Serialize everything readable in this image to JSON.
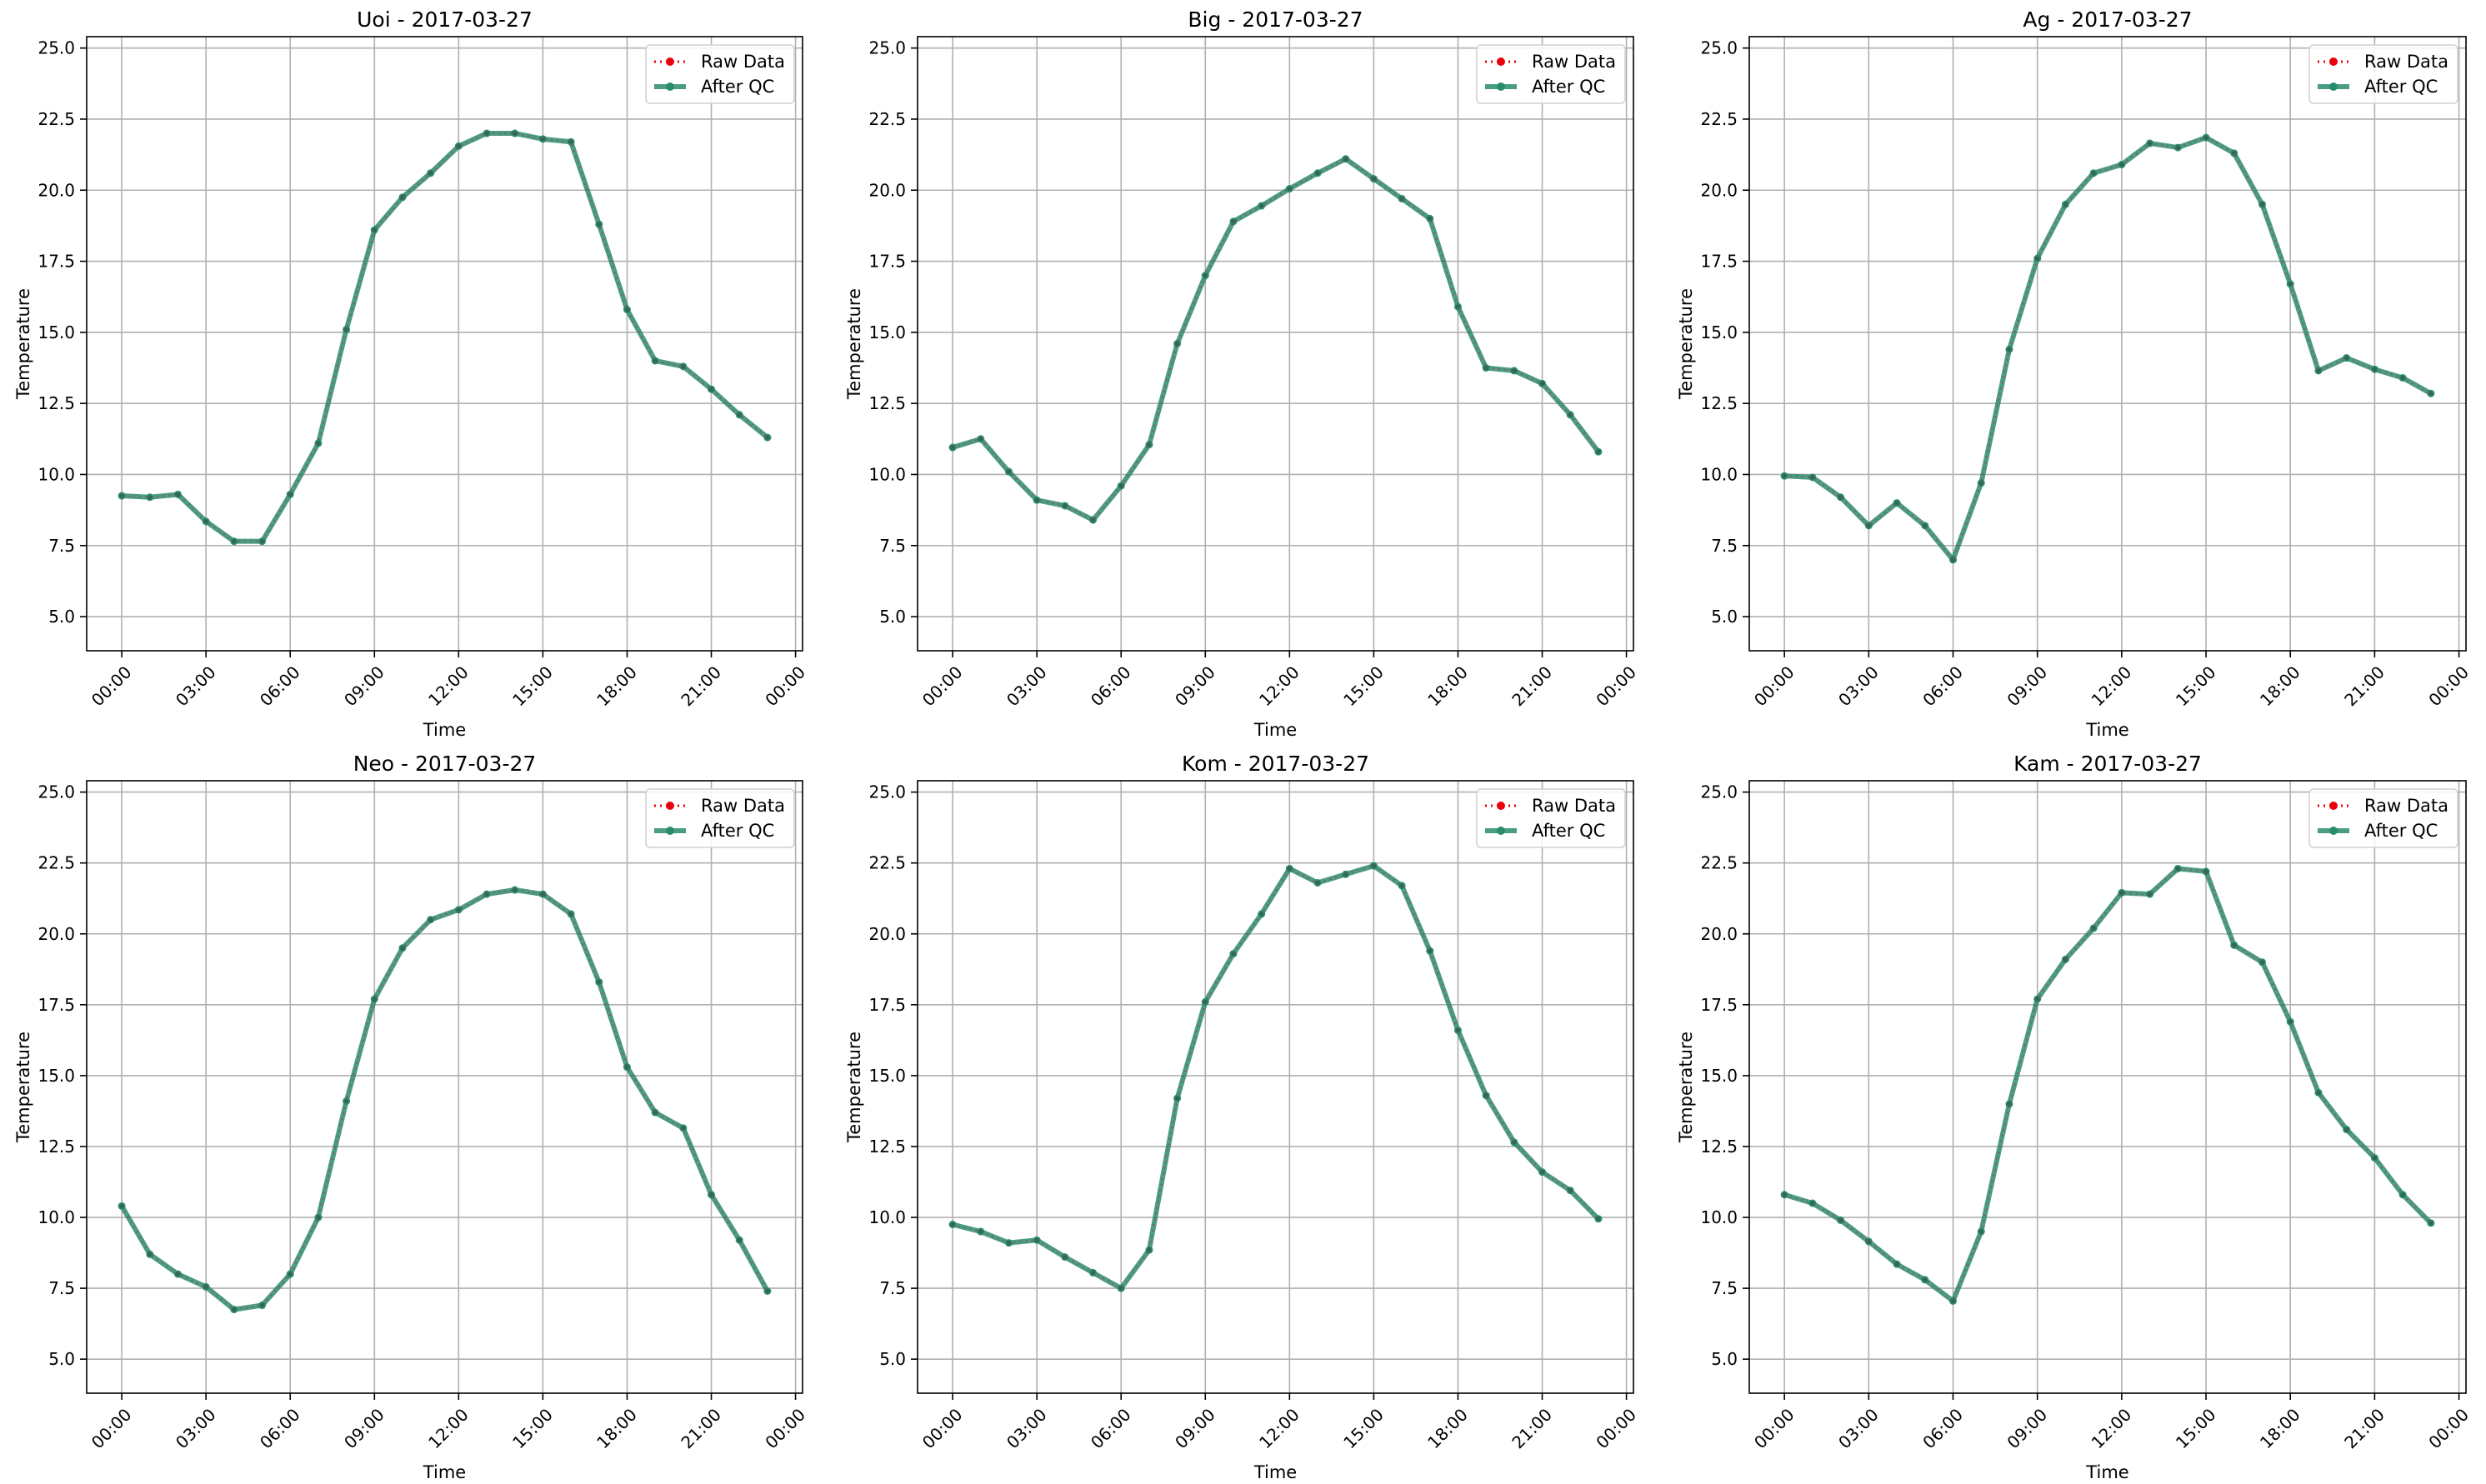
{
  "figure": {
    "background": "#ffffff"
  },
  "style": {
    "raw_color": "#e8000b",
    "qc_color": "#2a8c6e",
    "grid_color": "#b0b0b0",
    "spine_color": "#000000"
  },
  "chart_data": [
    {
      "type": "line",
      "title": "Uoi - 2017-03-27",
      "xlabel": "Time",
      "ylabel": "Temperature",
      "x": [
        "00:00",
        "01:00",
        "02:00",
        "03:00",
        "04:00",
        "05:00",
        "06:00",
        "07:00",
        "08:00",
        "09:00",
        "10:00",
        "11:00",
        "12:00",
        "13:00",
        "14:00",
        "15:00",
        "16:00",
        "17:00",
        "18:00",
        "19:00",
        "20:00",
        "21:00",
        "22:00",
        "23:00"
      ],
      "xticks": [
        "00:00",
        "03:00",
        "06:00",
        "09:00",
        "12:00",
        "15:00",
        "18:00",
        "21:00",
        "00:00"
      ],
      "yticks": [
        "5.0",
        "7.5",
        "10.0",
        "12.5",
        "15.0",
        "17.5",
        "20.0",
        "22.5",
        "25.0"
      ],
      "ylim": [
        3.8,
        25.4
      ],
      "series": [
        {
          "name": "Raw Data",
          "values": [
            9.25,
            9.2,
            9.3,
            8.35,
            7.65,
            7.65,
            9.3,
            11.1,
            15.1,
            18.6,
            19.75,
            20.6,
            21.55,
            22.0,
            22.0,
            21.8,
            21.7,
            18.8,
            15.8,
            14.0,
            13.8,
            13.0,
            12.1,
            11.3
          ]
        },
        {
          "name": "After QC",
          "values": [
            9.25,
            9.2,
            9.3,
            8.35,
            7.65,
            7.65,
            9.3,
            11.1,
            15.1,
            18.6,
            19.75,
            20.6,
            21.55,
            22.0,
            22.0,
            21.8,
            21.7,
            18.8,
            15.8,
            14.0,
            13.8,
            13.0,
            12.1,
            11.3
          ]
        }
      ],
      "legend": "top-right",
      "grid": true
    },
    {
      "type": "line",
      "title": "Big - 2017-03-27",
      "xlabel": "Time",
      "ylabel": "Temperature",
      "x": [
        "00:00",
        "01:00",
        "02:00",
        "03:00",
        "04:00",
        "05:00",
        "06:00",
        "07:00",
        "08:00",
        "09:00",
        "10:00",
        "11:00",
        "12:00",
        "13:00",
        "14:00",
        "15:00",
        "16:00",
        "17:00",
        "18:00",
        "19:00",
        "20:00",
        "21:00",
        "22:00",
        "23:00"
      ],
      "xticks": [
        "00:00",
        "03:00",
        "06:00",
        "09:00",
        "12:00",
        "15:00",
        "18:00",
        "21:00",
        "00:00"
      ],
      "yticks": [
        "5.0",
        "7.5",
        "10.0",
        "12.5",
        "15.0",
        "17.5",
        "20.0",
        "22.5",
        "25.0"
      ],
      "ylim": [
        3.8,
        25.4
      ],
      "series": [
        {
          "name": "Raw Data",
          "values": [
            10.95,
            11.25,
            10.1,
            9.1,
            8.9,
            8.4,
            9.6,
            11.05,
            14.6,
            17.0,
            18.9,
            19.45,
            20.05,
            20.6,
            21.1,
            20.4,
            19.7,
            19.0,
            15.9,
            13.75,
            13.65,
            13.2,
            12.1,
            10.8
          ]
        },
        {
          "name": "After QC",
          "values": [
            10.95,
            11.25,
            10.1,
            9.1,
            8.9,
            8.4,
            9.6,
            11.05,
            14.6,
            17.0,
            18.9,
            19.45,
            20.05,
            20.6,
            21.1,
            20.4,
            19.7,
            19.0,
            15.9,
            13.75,
            13.65,
            13.2,
            12.1,
            10.8
          ]
        }
      ],
      "legend": "top-right",
      "grid": true
    },
    {
      "type": "line",
      "title": "Ag - 2017-03-27",
      "xlabel": "Time",
      "ylabel": "Temperature",
      "x": [
        "00:00",
        "01:00",
        "02:00",
        "03:00",
        "04:00",
        "05:00",
        "06:00",
        "07:00",
        "08:00",
        "09:00",
        "10:00",
        "11:00",
        "12:00",
        "13:00",
        "14:00",
        "15:00",
        "16:00",
        "17:00",
        "18:00",
        "19:00",
        "20:00",
        "21:00",
        "22:00",
        "23:00"
      ],
      "xticks": [
        "00:00",
        "03:00",
        "06:00",
        "09:00",
        "12:00",
        "15:00",
        "18:00",
        "21:00",
        "00:00"
      ],
      "yticks": [
        "5.0",
        "7.5",
        "10.0",
        "12.5",
        "15.0",
        "17.5",
        "20.0",
        "22.5",
        "25.0"
      ],
      "ylim": [
        3.8,
        25.4
      ],
      "series": [
        {
          "name": "Raw Data",
          "values": [
            9.95,
            9.9,
            9.2,
            8.2,
            9.0,
            8.2,
            7.0,
            9.7,
            14.4,
            17.6,
            19.5,
            20.6,
            20.9,
            21.65,
            21.5,
            21.85,
            21.3,
            19.5,
            16.7,
            13.65,
            14.1,
            13.7,
            13.4,
            12.85
          ]
        },
        {
          "name": "After QC",
          "values": [
            9.95,
            9.9,
            9.2,
            8.2,
            9.0,
            8.2,
            7.0,
            9.7,
            14.4,
            17.6,
            19.5,
            20.6,
            20.9,
            21.65,
            21.5,
            21.85,
            21.3,
            19.5,
            16.7,
            13.65,
            14.1,
            13.7,
            13.4,
            12.85
          ]
        }
      ],
      "legend": "top-right",
      "grid": true
    },
    {
      "type": "line",
      "title": "Neo - 2017-03-27",
      "xlabel": "Time",
      "ylabel": "Temperature",
      "x": [
        "00:00",
        "01:00",
        "02:00",
        "03:00",
        "04:00",
        "05:00",
        "06:00",
        "07:00",
        "08:00",
        "09:00",
        "10:00",
        "11:00",
        "12:00",
        "13:00",
        "14:00",
        "15:00",
        "16:00",
        "17:00",
        "18:00",
        "19:00",
        "20:00",
        "21:00",
        "22:00",
        "23:00"
      ],
      "xticks": [
        "00:00",
        "03:00",
        "06:00",
        "09:00",
        "12:00",
        "15:00",
        "18:00",
        "21:00",
        "00:00"
      ],
      "yticks": [
        "5.0",
        "7.5",
        "10.0",
        "12.5",
        "15.0",
        "17.5",
        "20.0",
        "22.5",
        "25.0"
      ],
      "ylim": [
        3.8,
        25.4
      ],
      "series": [
        {
          "name": "Raw Data",
          "values": [
            10.4,
            8.7,
            8.0,
            7.55,
            6.75,
            6.9,
            8.0,
            10.0,
            14.1,
            17.7,
            19.5,
            20.5,
            20.85,
            21.4,
            21.55,
            21.4,
            20.7,
            18.3,
            15.3,
            13.7,
            13.15,
            10.8,
            9.2,
            7.4
          ]
        },
        {
          "name": "After QC",
          "values": [
            10.4,
            8.7,
            8.0,
            7.55,
            6.75,
            6.9,
            8.0,
            10.0,
            14.1,
            17.7,
            19.5,
            20.5,
            20.85,
            21.4,
            21.55,
            21.4,
            20.7,
            18.3,
            15.3,
            13.7,
            13.15,
            10.8,
            9.2,
            7.4
          ]
        }
      ],
      "legend": "top-right",
      "grid": true
    },
    {
      "type": "line",
      "title": "Kom - 2017-03-27",
      "xlabel": "Time",
      "ylabel": "Temperature",
      "x": [
        "00:00",
        "01:00",
        "02:00",
        "03:00",
        "04:00",
        "05:00",
        "06:00",
        "07:00",
        "08:00",
        "09:00",
        "10:00",
        "11:00",
        "12:00",
        "13:00",
        "14:00",
        "15:00",
        "16:00",
        "17:00",
        "18:00",
        "19:00",
        "20:00",
        "21:00",
        "22:00",
        "23:00"
      ],
      "xticks": [
        "00:00",
        "03:00",
        "06:00",
        "09:00",
        "12:00",
        "15:00",
        "18:00",
        "21:00",
        "00:00"
      ],
      "yticks": [
        "5.0",
        "7.5",
        "10.0",
        "12.5",
        "15.0",
        "17.5",
        "20.0",
        "22.5",
        "25.0"
      ],
      "ylim": [
        3.8,
        25.4
      ],
      "series": [
        {
          "name": "Raw Data",
          "values": [
            9.75,
            9.5,
            9.1,
            9.2,
            8.6,
            8.05,
            7.5,
            8.85,
            14.2,
            17.6,
            19.3,
            20.7,
            22.3,
            21.8,
            22.1,
            22.4,
            21.7,
            19.4,
            16.6,
            14.3,
            12.65,
            11.6,
            10.95,
            9.95
          ]
        },
        {
          "name": "After QC",
          "values": [
            9.75,
            9.5,
            9.1,
            9.2,
            8.6,
            8.05,
            7.5,
            8.85,
            14.2,
            17.6,
            19.3,
            20.7,
            22.3,
            21.8,
            22.1,
            22.4,
            21.7,
            19.4,
            16.6,
            14.3,
            12.65,
            11.6,
            10.95,
            9.95
          ]
        }
      ],
      "legend": "top-right",
      "grid": true
    },
    {
      "type": "line",
      "title": "Kam - 2017-03-27",
      "xlabel": "Time",
      "ylabel": "Temperature",
      "x": [
        "00:00",
        "01:00",
        "02:00",
        "03:00",
        "04:00",
        "05:00",
        "06:00",
        "07:00",
        "08:00",
        "09:00",
        "10:00",
        "11:00",
        "12:00",
        "13:00",
        "14:00",
        "15:00",
        "16:00",
        "17:00",
        "18:00",
        "19:00",
        "20:00",
        "21:00",
        "22:00",
        "23:00"
      ],
      "xticks": [
        "00:00",
        "03:00",
        "06:00",
        "09:00",
        "12:00",
        "15:00",
        "18:00",
        "21:00",
        "00:00"
      ],
      "yticks": [
        "5.0",
        "7.5",
        "10.0",
        "12.5",
        "15.0",
        "17.5",
        "20.0",
        "22.5",
        "25.0"
      ],
      "ylim": [
        3.8,
        25.4
      ],
      "series": [
        {
          "name": "Raw Data",
          "values": [
            10.8,
            10.5,
            9.9,
            9.15,
            8.35,
            7.8,
            7.05,
            9.5,
            14.0,
            17.7,
            19.1,
            20.2,
            21.45,
            21.4,
            22.3,
            22.2,
            19.6,
            19.0,
            16.9,
            14.4,
            13.1,
            12.1,
            10.8,
            9.8
          ]
        },
        {
          "name": "After QC",
          "values": [
            10.8,
            10.5,
            9.9,
            9.15,
            8.35,
            7.8,
            7.05,
            9.5,
            14.0,
            17.7,
            19.1,
            20.2,
            21.45,
            21.4,
            22.3,
            22.2,
            19.6,
            19.0,
            16.9,
            14.4,
            13.1,
            12.1,
            10.8,
            9.8
          ]
        }
      ],
      "legend": "top-right",
      "grid": true
    }
  ]
}
